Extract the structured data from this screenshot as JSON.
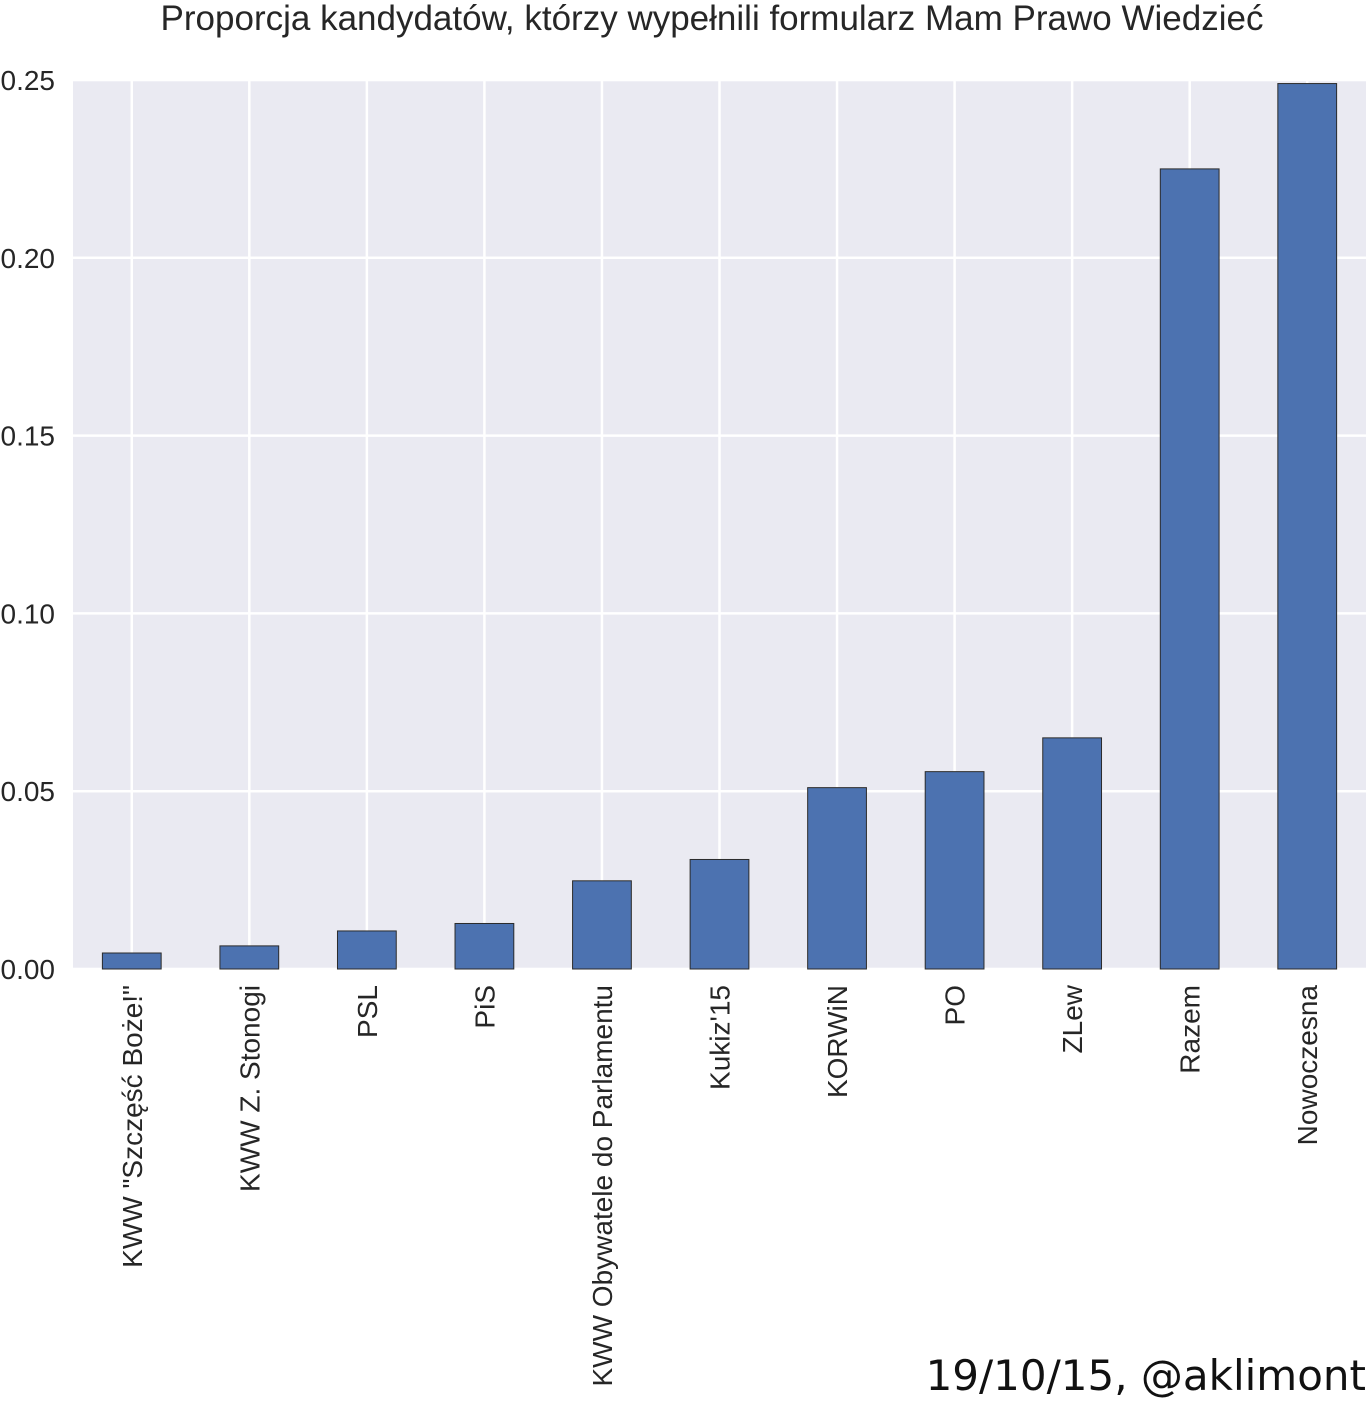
{
  "chart_data": {
    "type": "bar",
    "title": "Proporcja kandydatów, którzy wypełnili formularz Mam Prawo Wiedzieć",
    "xlabel": "",
    "ylabel": "",
    "ylim": [
      0,
      0.25
    ],
    "yticks": [
      "0.00",
      "0.05",
      "0.10",
      "0.15",
      "0.20",
      "0.25"
    ],
    "ytick_values": [
      0,
      0.05,
      0.1,
      0.15,
      0.2,
      0.25
    ],
    "grid": true,
    "categories": [
      "KWW \"Szczęść Boże!\"",
      "KWW Z. Stonogi",
      "PSL",
      "PiS",
      "KWW Obywatele do Parlamentu",
      "Kukiz'15",
      "KORWiN",
      "PO",
      "ZLew",
      "Razem",
      "Nowoczesna"
    ],
    "values": [
      0.0045,
      0.0065,
      0.0107,
      0.0128,
      0.0248,
      0.0308,
      0.051,
      0.0555,
      0.065,
      0.225,
      0.249
    ],
    "colors": {
      "bar": "#4c72b0",
      "bar_edge": "#2b2b2b",
      "axes_bg": "#eaeaf2",
      "grid": "#ffffff",
      "text": "#262626"
    }
  },
  "credit": "19/10/15, @aklimont"
}
